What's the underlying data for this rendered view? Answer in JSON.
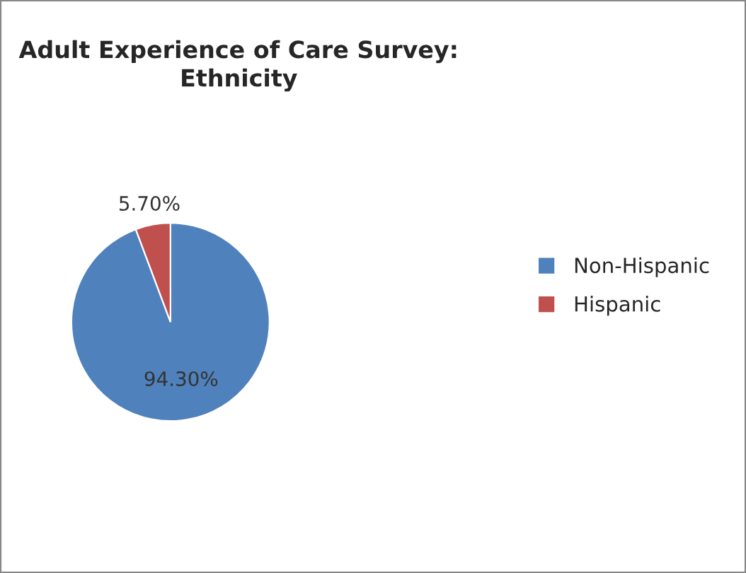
{
  "chart_data": {
    "type": "pie",
    "title": "Adult Experience of Care Survey: Ethnicity",
    "categories": [
      "Non-Hispanic",
      "Hispanic"
    ],
    "values": [
      94.3,
      5.7
    ],
    "value_labels": [
      "94.30%",
      "5.70%"
    ],
    "colors": [
      "#4f81bd",
      "#c0504d"
    ],
    "legend": "right"
  }
}
